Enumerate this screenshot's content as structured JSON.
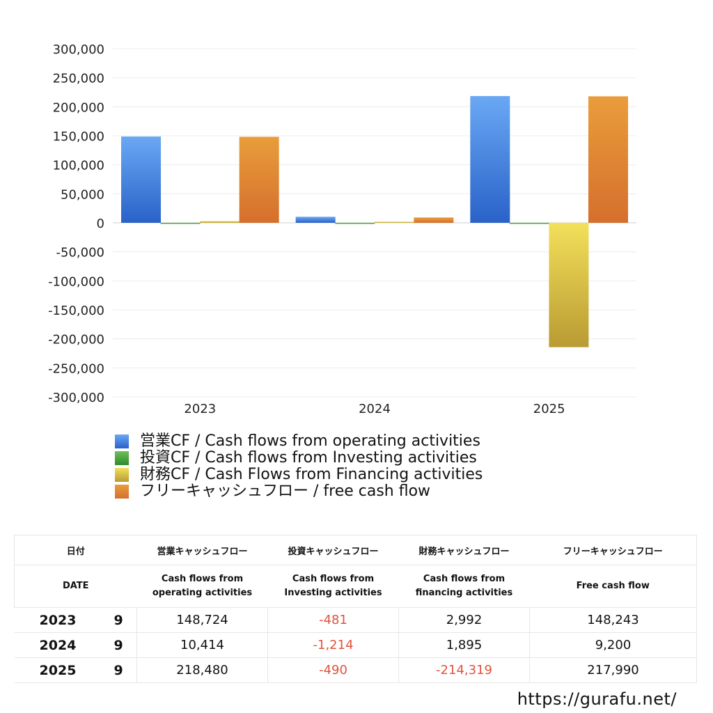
{
  "chart_data": {
    "type": "bar",
    "categories": [
      "2023",
      "2024",
      "2025"
    ],
    "series": [
      {
        "name": "営業CF / Cash flows from operating activities",
        "values": [
          148724,
          10414,
          218480
        ],
        "color": "#3b7fe0"
      },
      {
        "name": "投資CF / Cash flows from Investing activities",
        "values": [
          -481,
          -1214,
          -490
        ],
        "color": "#3f9a3a"
      },
      {
        "name": "財務CF / Cash Flows from Financing activities",
        "values": [
          2992,
          1895,
          -214319
        ],
        "color": "#e6cf45"
      },
      {
        "name": "フリーキャッシュフロー / free cash flow",
        "values": [
          148243,
          9200,
          217990
        ],
        "color": "#e08a34"
      }
    ],
    "yticks": [
      "300,000",
      "250,000",
      "200,000",
      "150,000",
      "100,000",
      "50,000",
      "0",
      "-50,000",
      "-100,000",
      "-150,000",
      "-200,000",
      "-250,000",
      "-300,000"
    ],
    "ylim": [
      -300000,
      300000
    ],
    "grid": true,
    "legend_position": "bottom-left"
  },
  "table": {
    "header1": [
      "日付",
      "",
      "営業キャッシュフロー",
      "投資キャッシュフロー",
      "財務キャッシュフロー",
      "フリーキャッシュフロー"
    ],
    "header2": [
      "DATE",
      "",
      "Cash flows from\noperating activities",
      "Cash flows from\nInvesting activities",
      "Cash flows from\nfinancing activities",
      "Free cash flow"
    ],
    "rows": [
      {
        "year": "2023",
        "month": "9",
        "op": "148,724",
        "inv": "-481",
        "fin": "2,992",
        "free": "148,243"
      },
      {
        "year": "2024",
        "month": "9",
        "op": "10,414",
        "inv": "-1,214",
        "fin": "1,895",
        "free": "9,200"
      },
      {
        "year": "2025",
        "month": "9",
        "op": "218,480",
        "inv": "-490",
        "fin": "-214,319",
        "free": "217,990"
      }
    ]
  },
  "footer": {
    "url": "https://gurafu.net/"
  }
}
